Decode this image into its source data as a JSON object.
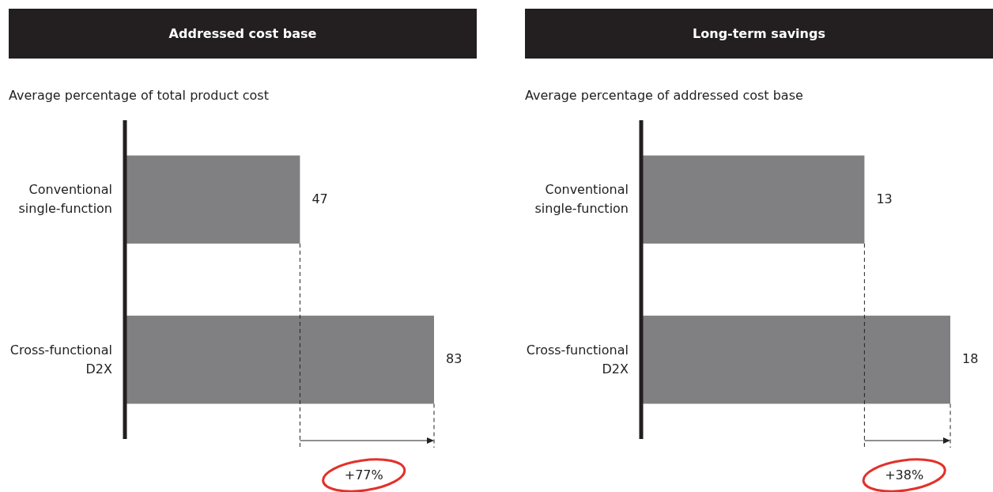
{
  "chart_data": [
    {
      "type": "bar",
      "orientation": "horizontal",
      "title": "Addressed cost base",
      "subtitle": "Average percentage of total product cost",
      "categories": [
        "Conventional single-function",
        "Cross-functional D2X"
      ],
      "values": [
        47,
        83
      ],
      "color": "#808083",
      "data_labels": true,
      "annotations": [
        "+77%"
      ],
      "ref_lines": [
        {
          "axis": "x",
          "value": 47,
          "line_style": "dashed",
          "color": "#222222"
        },
        {
          "axis": "x",
          "value": 83,
          "line_style": "dashed",
          "color": "#222222"
        }
      ]
    },
    {
      "type": "bar",
      "orientation": "horizontal",
      "title": "Long-term savings",
      "subtitle": "Average percentage of addressed cost base",
      "categories": [
        "Conventional single-function",
        "Cross-functional D2X"
      ],
      "values": [
        13,
        18
      ],
      "color": "#808083",
      "data_labels": true,
      "annotations": [
        "+38%"
      ],
      "ref_lines": [
        {
          "axis": "x",
          "value": 13,
          "line_style": "dashed",
          "color": "#222222"
        },
        {
          "axis": "x",
          "value": 18,
          "line_style": "dashed",
          "color": "#222222"
        }
      ]
    }
  ]
}
